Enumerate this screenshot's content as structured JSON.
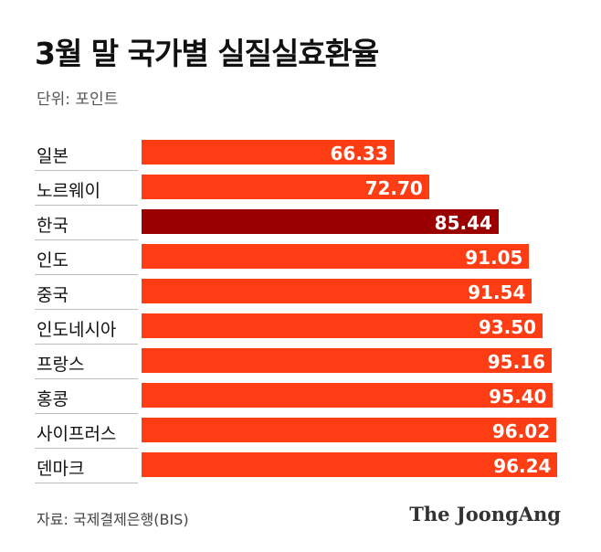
{
  "title": "3월 말 국가별 실질실효환율",
  "unit_label": "단위: 포인트",
  "source": "자료: 국제결제은행(BIS)",
  "logo_text": "The JoongAng",
  "colors": {
    "bar_default": "#fe3d14",
    "bar_highlight": "#9b0000"
  },
  "chart_data": {
    "type": "bar",
    "orientation": "horizontal",
    "title": "3월 말 국가별 실질실효환율",
    "unit": "단위: 포인트",
    "categories": [
      "일본",
      "노르웨이",
      "한국",
      "인도",
      "중국",
      "인도네시아",
      "프랑스",
      "홍콩",
      "사이프러스",
      "덴마크"
    ],
    "values": [
      66.33,
      72.7,
      85.44,
      91.05,
      91.54,
      93.5,
      95.16,
      95.4,
      96.02,
      96.24
    ],
    "value_labels": [
      "66.33",
      "72.70",
      "85.44",
      "91.05",
      "91.54",
      "93.50",
      "95.16",
      "95.40",
      "96.02",
      "96.24"
    ],
    "highlight": "한국",
    "xlim": [
      20,
      97
    ]
  }
}
